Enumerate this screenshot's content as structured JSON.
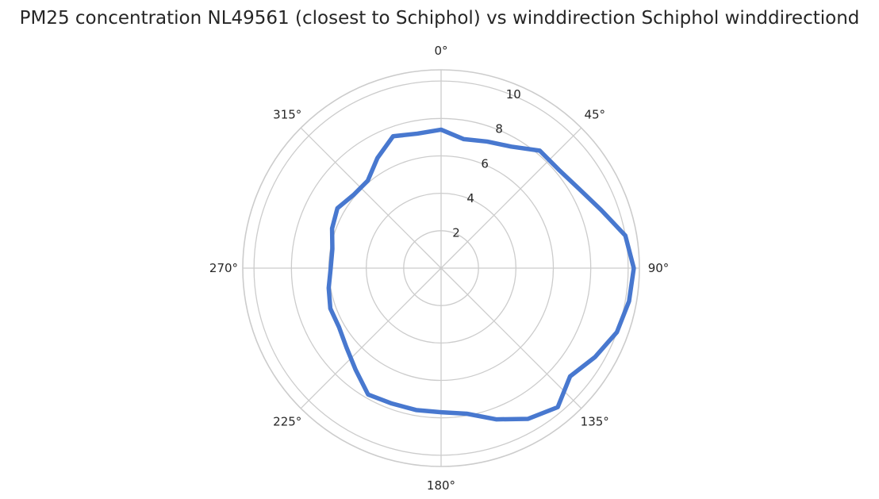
{
  "chart_data": {
    "type": "line",
    "projection": "polar",
    "title": "PM25 concentration NL49561 (closest to Schiphol) vs winddirection Schiphol winddirectiond",
    "theta_zero": "top",
    "theta_direction": "clockwise",
    "theta_ticks": [
      "0°",
      "45°",
      "90°",
      "135°",
      "180°",
      "225°",
      "270°",
      "315°"
    ],
    "r_ticks": [
      2,
      4,
      6,
      8,
      10
    ],
    "rlim": [
      0,
      10.6
    ],
    "grid": true,
    "line_color": "#4878cf",
    "series": [
      {
        "x": [
          0,
          10,
          20,
          30,
          40,
          50,
          60,
          70,
          80,
          90,
          100,
          110,
          120,
          130,
          140,
          150,
          160,
          170,
          180,
          190,
          200,
          210,
          220,
          230,
          240,
          250,
          260,
          270,
          280,
          290,
          300,
          310,
          320,
          330,
          340,
          350,
          360
        ],
        "values": [
          7.4,
          7.0,
          7.2,
          7.5,
          8.2,
          8.2,
          8.5,
          9.1,
          10.0,
          10.3,
          10.2,
          10.0,
          9.5,
          9.0,
          9.7,
          9.3,
          8.6,
          7.9,
          7.7,
          7.7,
          7.7,
          7.8,
          7.1,
          6.6,
          6.3,
          6.3,
          6.1,
          5.9,
          5.9,
          6.2,
          6.4,
          6.1,
          6.1,
          6.8,
          7.5,
          7.3,
          7.4
        ]
      }
    ]
  }
}
